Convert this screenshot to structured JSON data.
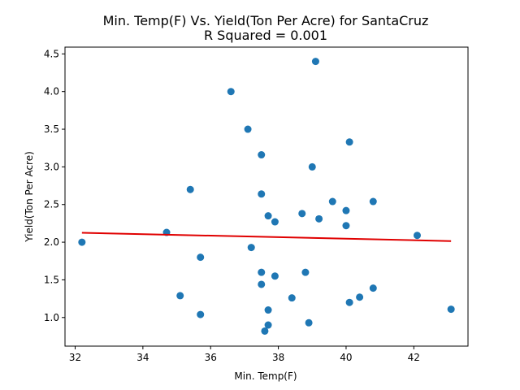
{
  "chart_data": {
    "type": "scatter",
    "title": "Min. Temp(F) Vs. Yield(Ton Per Acre) for SantaCruz",
    "subtitle": "R Squared =  0.001",
    "xlabel": "Min. Temp(F)",
    "ylabel": "Yield(Ton Per Acre)",
    "xlim": [
      31.7,
      43.6
    ],
    "ylim": [
      0.62,
      4.59
    ],
    "xticks": [
      32,
      34,
      36,
      38,
      40,
      42
    ],
    "yticks": [
      1.0,
      1.5,
      2.0,
      2.5,
      3.0,
      3.5,
      4.0,
      4.5
    ],
    "xtick_labels": [
      "32",
      "34",
      "36",
      "38",
      "40",
      "42"
    ],
    "ytick_labels": [
      "1.0",
      "1.5",
      "2.0",
      "2.5",
      "3.0",
      "3.5",
      "4.0",
      "4.5"
    ],
    "grid": false,
    "series": [
      {
        "type": "scatter",
        "color": "#1f77b4",
        "points": [
          [
            32.2,
            2.0
          ],
          [
            34.7,
            2.13
          ],
          [
            35.1,
            1.29
          ],
          [
            35.4,
            2.7
          ],
          [
            35.7,
            1.8
          ],
          [
            35.7,
            1.04
          ],
          [
            36.6,
            4.0
          ],
          [
            37.1,
            3.5
          ],
          [
            37.2,
            1.93
          ],
          [
            37.5,
            3.16
          ],
          [
            37.5,
            2.64
          ],
          [
            37.5,
            1.6
          ],
          [
            37.5,
            1.44
          ],
          [
            37.6,
            0.82
          ],
          [
            37.7,
            2.35
          ],
          [
            37.7,
            1.1
          ],
          [
            37.7,
            0.9
          ],
          [
            37.9,
            2.27
          ],
          [
            37.9,
            1.55
          ],
          [
            38.4,
            1.26
          ],
          [
            38.7,
            2.38
          ],
          [
            38.8,
            1.6
          ],
          [
            38.9,
            0.93
          ],
          [
            39.0,
            3.0
          ],
          [
            39.1,
            4.4
          ],
          [
            39.2,
            2.31
          ],
          [
            39.6,
            2.54
          ],
          [
            40.0,
            2.42
          ],
          [
            40.0,
            2.22
          ],
          [
            40.1,
            3.33
          ],
          [
            40.1,
            1.2
          ],
          [
            40.4,
            1.27
          ],
          [
            40.8,
            2.54
          ],
          [
            40.8,
            1.39
          ],
          [
            42.1,
            2.09
          ],
          [
            43.1,
            1.11
          ]
        ]
      },
      {
        "type": "line",
        "color": "#e00000",
        "points": [
          [
            32.2,
            2.125
          ],
          [
            43.1,
            2.015
          ]
        ]
      }
    ]
  }
}
